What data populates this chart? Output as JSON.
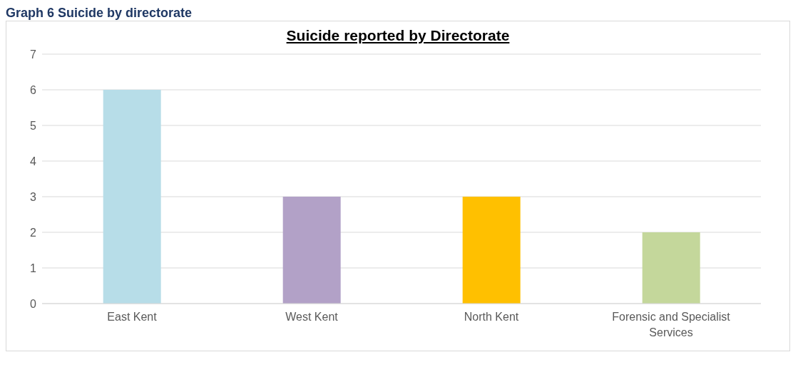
{
  "chart_data": {
    "type": "bar",
    "title": "Suicide reported by Directorate",
    "annotations": [
      "Graph 6 Suicide by directorate"
    ],
    "categories": [
      "East Kent",
      "West Kent",
      "North Kent",
      "Forensic and Specialist Services"
    ],
    "values": [
      6,
      3,
      3,
      2
    ],
    "colors": [
      "#b7dde8",
      "#b2a1c7",
      "#ffc000",
      "#c4d79b"
    ],
    "ylim": [
      0,
      7
    ],
    "yticks": [
      0,
      1,
      2,
      3,
      4,
      5,
      6,
      7
    ],
    "grid": "y"
  }
}
